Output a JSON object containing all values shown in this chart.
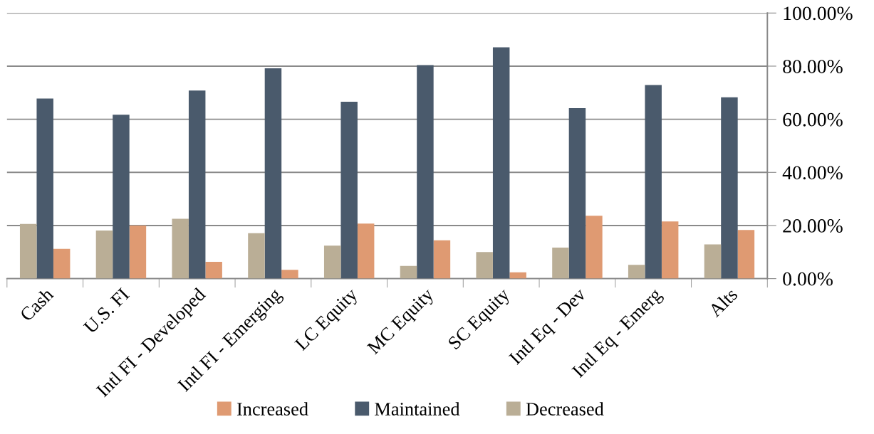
{
  "chart_data": {
    "type": "bar",
    "categories": [
      "Cash",
      "U.S. FI",
      "Intl FI - Developed",
      "Intl FI - Emerging",
      "LC Equity",
      "MC Equity",
      "SC Equity",
      "Intl Eq - Dev",
      "Intl Eq - Emerg",
      "Alts"
    ],
    "series": [
      {
        "name": "Increased",
        "color": "#df9a72",
        "values": [
          11.2,
          20.0,
          6.3,
          3.3,
          20.7,
          14.4,
          2.4,
          23.7,
          21.5,
          18.3
        ]
      },
      {
        "name": "Maintained",
        "color": "#4a5a6c",
        "values": [
          67.8,
          61.7,
          70.8,
          79.2,
          66.6,
          80.4,
          87.1,
          64.2,
          72.9,
          68.3
        ]
      },
      {
        "name": "Decreased",
        "color": "#baae96",
        "values": [
          20.6,
          18.1,
          22.5,
          17.1,
          12.4,
          4.8,
          10.0,
          11.7,
          5.2,
          12.9
        ]
      }
    ],
    "ylim": [
      0,
      100
    ],
    "yticks": [
      {
        "value": 0,
        "label": "0.00%"
      },
      {
        "value": 20,
        "label": "20.00%"
      },
      {
        "value": 40,
        "label": "40.00%"
      },
      {
        "value": 60,
        "label": "60.00%"
      },
      {
        "value": 80,
        "label": "80.00%"
      },
      {
        "value": 100,
        "label": "100.00%"
      }
    ],
    "grid": "y",
    "legend": "bottom"
  }
}
